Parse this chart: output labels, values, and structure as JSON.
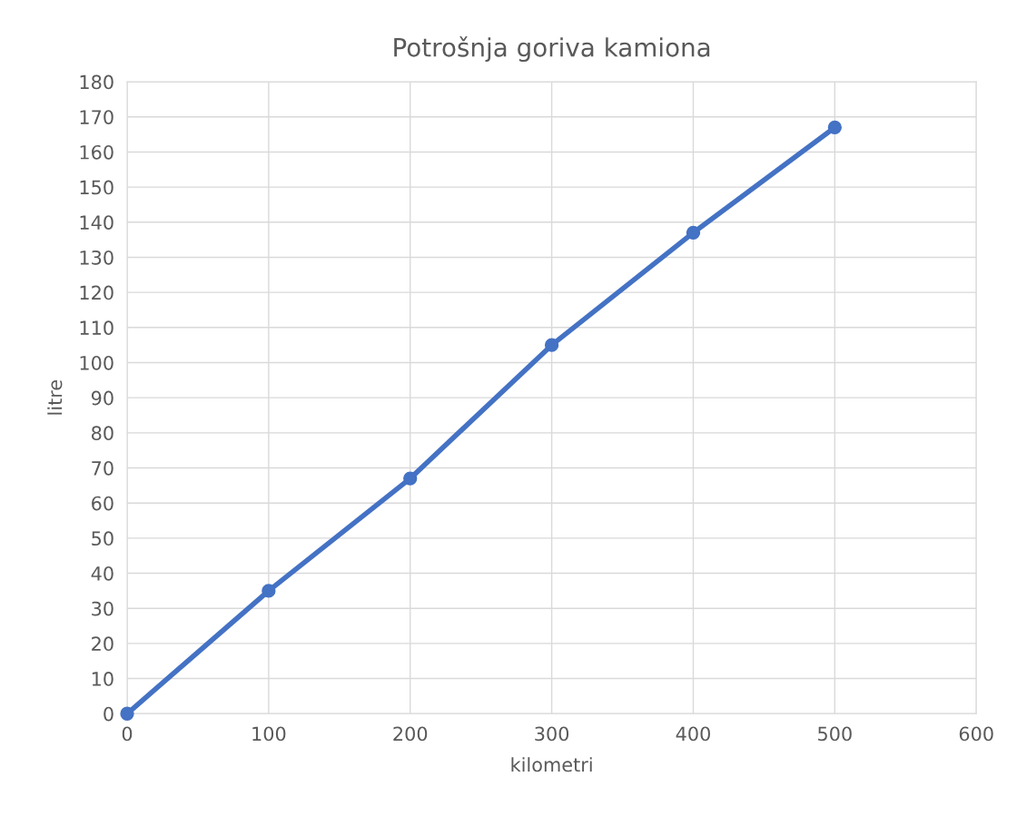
{
  "chart_data": {
    "type": "line",
    "title": "Potrošnja goriva kamiona",
    "xlabel": "kilometri",
    "ylabel": "litre",
    "x": [
      0,
      100,
      200,
      300,
      400,
      500
    ],
    "series": [
      {
        "color": "#4472c4",
        "values": [
          0,
          35,
          67,
          105,
          137,
          167
        ]
      }
    ],
    "xlim": [
      0,
      600
    ],
    "xticks": [
      0,
      100,
      200,
      300,
      400,
      500,
      600
    ],
    "ylim": [
      0,
      180
    ],
    "yticks": [
      0,
      10,
      20,
      30,
      40,
      50,
      60,
      70,
      80,
      90,
      100,
      110,
      120,
      130,
      140,
      150,
      160,
      170,
      180
    ],
    "grid": true,
    "marker": "circle",
    "line_style": "solid"
  }
}
